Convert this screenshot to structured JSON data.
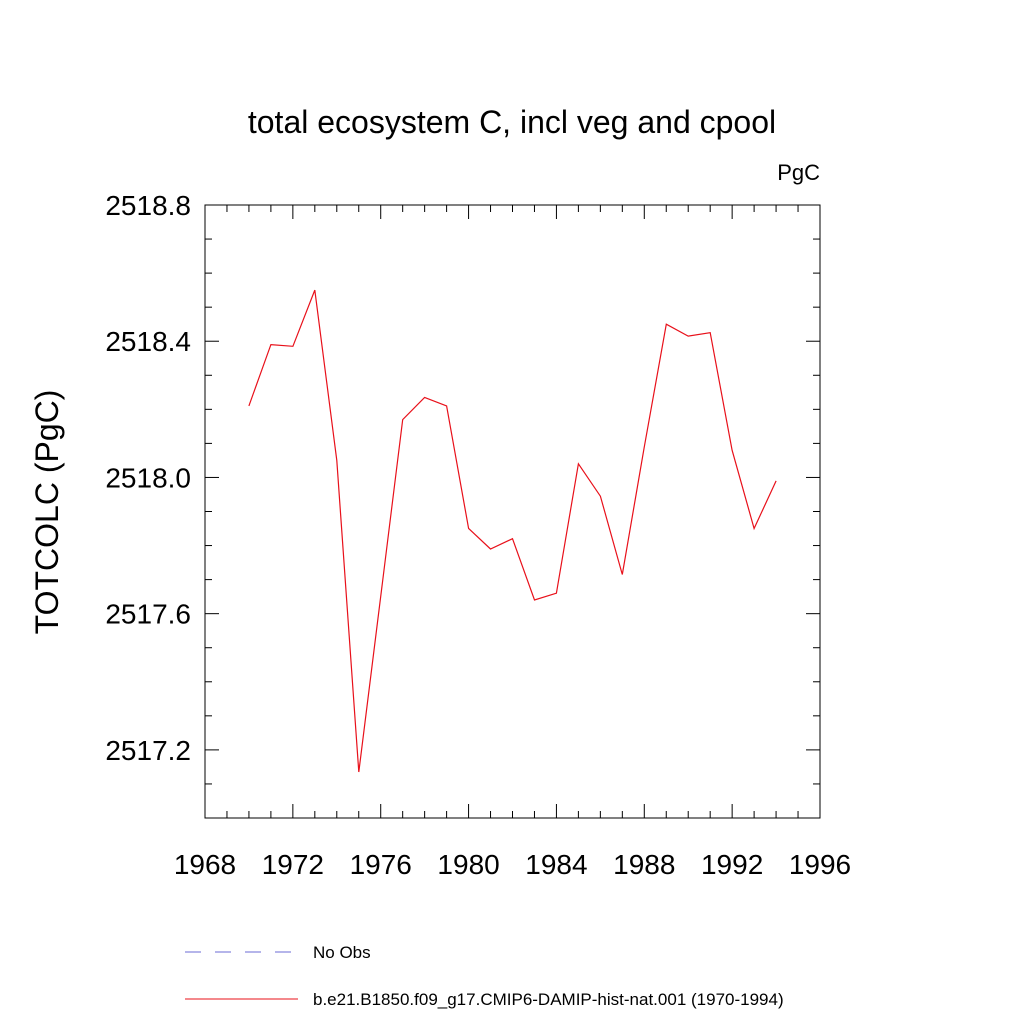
{
  "chart_data": {
    "type": "line",
    "title": "total ecosystem C, incl veg and cpool",
    "units_label": "PgC",
    "ylabel": "TOTCOLC  (PgC)",
    "xlabel": "",
    "xlim": [
      1968,
      1996
    ],
    "ylim": [
      2517.0,
      2518.8
    ],
    "x_ticks": [
      1968,
      1972,
      1976,
      1980,
      1984,
      1988,
      1992,
      1996
    ],
    "x_tick_labels": [
      "1968",
      "1972",
      "1976",
      "1980",
      "1984",
      "1988",
      "1992",
      "1996"
    ],
    "y_ticks": [
      2517.2,
      2517.6,
      2518.0,
      2518.4,
      2518.8
    ],
    "y_tick_labels": [
      "2517.2",
      "2517.6",
      "2518.0",
      "2518.4",
      "2518.8"
    ],
    "x_minor_step": 1,
    "y_minor_step": 0.1,
    "grid": false,
    "legend_position": "bottom",
    "legend": [
      {
        "label": "No Obs",
        "color": "#6b6bd6",
        "style": "dashed"
      },
      {
        "label": "b.e21.B1850.f09_g17.CMIP6-DAMIP-hist-nat.001 (1970-1994)",
        "color": "#e8101a",
        "style": "solid"
      }
    ],
    "series": [
      {
        "name": "b.e21.B1850.f09_g17.CMIP6-DAMIP-hist-nat.001 (1970-1994)",
        "color": "#e8101a",
        "x": [
          1970,
          1971,
          1972,
          1973,
          1974,
          1975,
          1976,
          1977,
          1978,
          1979,
          1980,
          1981,
          1982,
          1983,
          1984,
          1985,
          1986,
          1987,
          1988,
          1989,
          1990,
          1991,
          1992,
          1993,
          1994
        ],
        "y": [
          2518.21,
          2518.39,
          2518.385,
          2518.55,
          2518.05,
          2517.135,
          2517.65,
          2518.17,
          2518.235,
          2518.21,
          2517.85,
          2517.79,
          2517.82,
          2517.64,
          2517.66,
          2518.04,
          2517.945,
          2517.715,
          2518.09,
          2518.45,
          2518.415,
          2518.425,
          2518.08,
          2517.85,
          2517.99
        ]
      }
    ]
  }
}
